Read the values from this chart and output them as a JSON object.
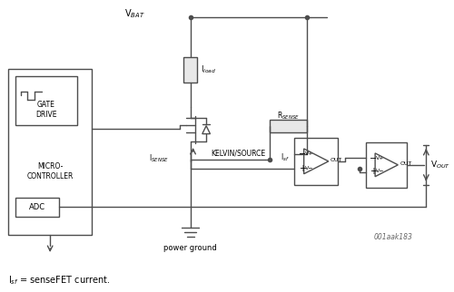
{
  "bg_color": "#ffffff",
  "line_color": "#4d4d4d",
  "text_color": "#000000",
  "title_note": "001aak183",
  "footer_text": "I$_{sf}$ = senseFET current.",
  "vbat_label": "V$_{BAT}$",
  "load_label": "I$_{load}$",
  "isense_label": "I$_{SENSE}$",
  "kelvin_label": "KELVIN/SOURCE",
  "rsense_label": "R$_{SENSE}$",
  "isf_label": "I$_{sf}$",
  "vout_label": "V$_{OUT}$",
  "adc_label": "ADC",
  "gate_label": "GATE\nDRIVE",
  "micro_label": "MICRO-\nCONTROLLER",
  "power_ground_label": "power ground",
  "out_label": "OUT",
  "vplus_label": "V+",
  "vminus_label": "V−"
}
